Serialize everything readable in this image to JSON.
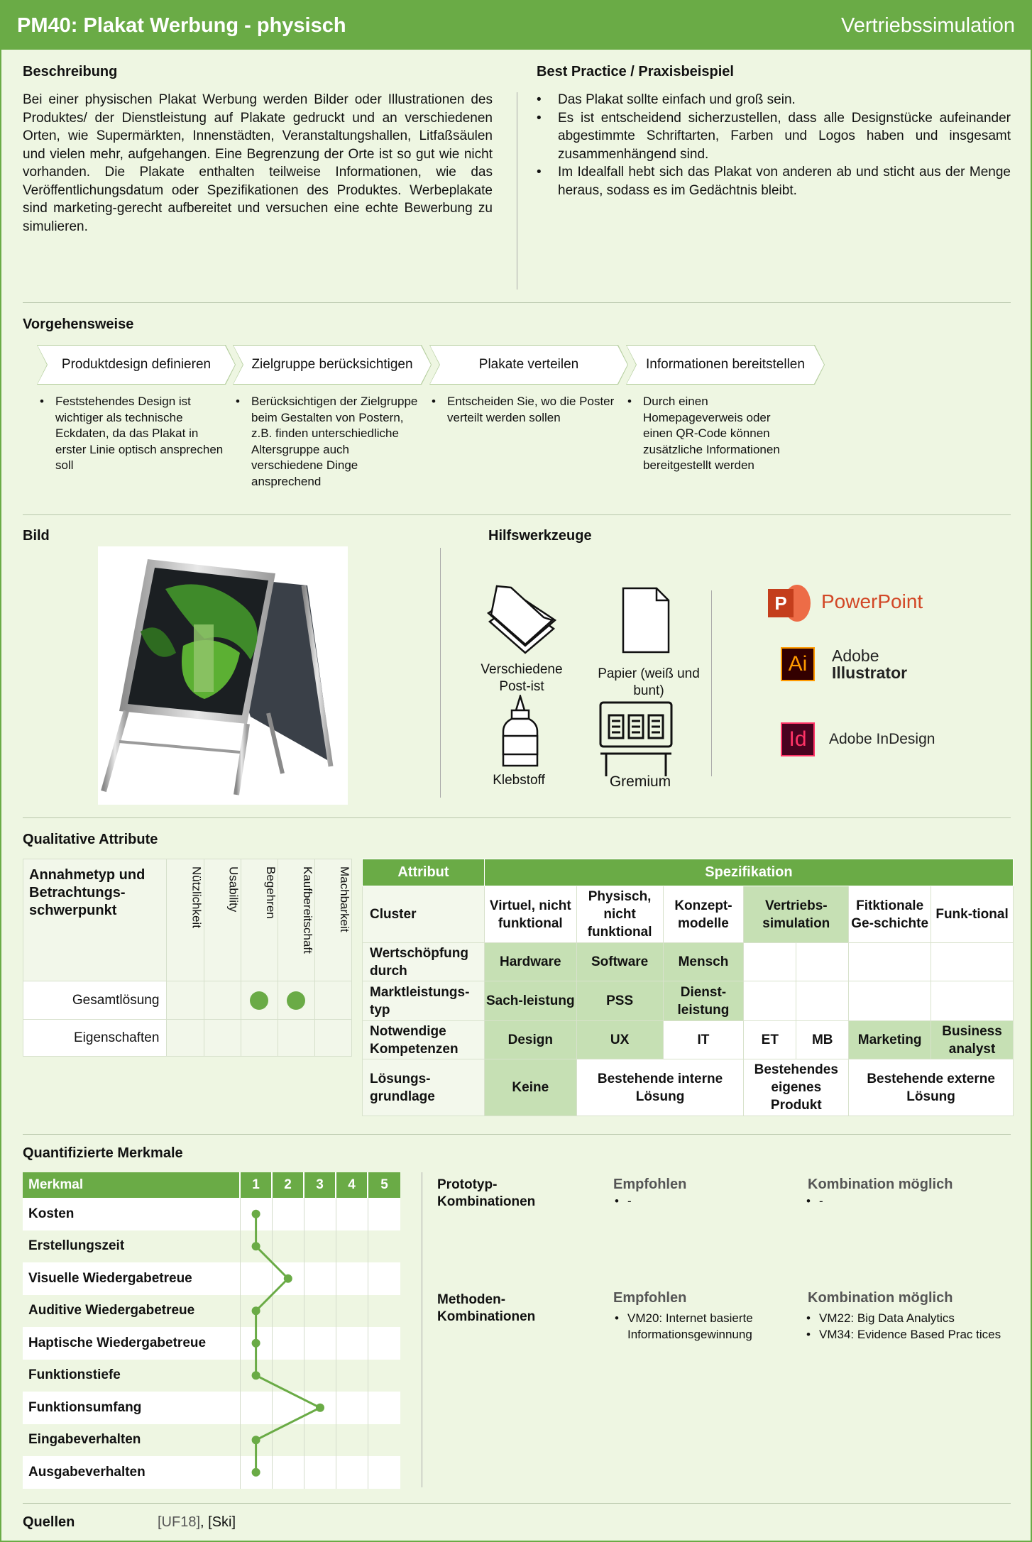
{
  "header": {
    "title": "PM40: Plakat Werbung - physisch",
    "category": "Vertriebssimulation"
  },
  "beschreibung": {
    "heading": "Beschreibung",
    "text": "Bei einer physischen Plakat Werbung werden Bilder oder Illustrationen des Produktes/ der Dienstleistung auf Plakate gedruckt und an verschiedenen Orten, wie Supermärkten, Innenstädten, Veranstaltungshallen, Litfaßsäulen und vielen mehr, aufgehangen. Eine Begrenzung der Orte ist so gut wie nicht vorhanden. Die Plakate enthalten teilweise Informationen, wie das Veröffentlichungsdatum oder Spezifikationen des Produktes. Werbeplakate sind marketing-gerecht aufbereitet und versuchen eine echte Bewerbung zu simulieren."
  },
  "best_practice": {
    "heading": "Best Practice / Praxisbeispiel",
    "items": [
      "Das Plakat sollte einfach und groß sein.",
      "Es ist entscheidend sicherzustellen, dass alle Designstücke aufeinander abgestimmte Schriftarten, Farben und Logos haben und insgesamt zusammenhängend sind.",
      "Im Idealfall hebt sich das Plakat von anderen ab und sticht aus der Menge heraus, sodass es im Gedächtnis bleibt."
    ]
  },
  "vorgehen": {
    "heading": "Vorgehensweise",
    "steps": [
      {
        "title": "Produktdesign definieren",
        "text": "Feststehendes Design ist wichtiger als technische Eckdaten, da das Plakat in erster Linie optisch ansprechen soll"
      },
      {
        "title": "Zielgruppe berücksichtigen",
        "text": "Berücksichtigen der Zielgruppe beim Gestalten von Postern, z.B. finden unterschiedliche Altersgruppe auch verschiedene Dinge ansprechend"
      },
      {
        "title": "Plakate verteilen",
        "text": "Entscheiden Sie, wo die Poster verteilt werden sollen"
      },
      {
        "title": "Informationen bereitstellen",
        "text": "Durch einen Homepageverweis oder einen QR-Code können zusätzliche Informationen bereitgestellt werden"
      }
    ]
  },
  "bild": {
    "heading": "Bild"
  },
  "hilfswerkzeuge": {
    "heading": "Hilfswerkzeuge",
    "tools": [
      "Verschiedene Post-ist",
      "Papier (weiß und bunt)",
      "Klebstoff",
      "Gremium"
    ],
    "software": {
      "ppt_abbr": "P",
      "ppt_name": "PowerPoint",
      "ai_abbr": "Ai",
      "ai_name1": "Adobe",
      "ai_name2": "Illustrator",
      "id_abbr": "Id",
      "id_name": "Adobe InDesign"
    }
  },
  "qualitative": {
    "heading": "Qualitative Attribute",
    "corner": "Annahmetyp und Betrachtungs-schwerpunkt",
    "columns": [
      "Nützlichkeit",
      "Usability",
      "Begehren",
      "Kaufbereitschaft",
      "Machbarkeit"
    ],
    "rows": [
      {
        "label": "Gesamtlösung",
        "marks": [
          false,
          false,
          true,
          true,
          false
        ]
      },
      {
        "label": "Eigenschaften",
        "marks": [
          false,
          false,
          false,
          false,
          false
        ]
      }
    ]
  },
  "spezifikation": {
    "head_attr": "Attribut",
    "head_spec": "Spezifikation",
    "cluster": {
      "label": "Cluster",
      "values": [
        "Virtuel, nicht funktional",
        "Physisch, nicht funktional",
        "Konzept-modelle",
        "Vertriebs-simulation",
        "Fitktionale Ge-schichte",
        "Funk-tional"
      ]
    },
    "wertschoepfung": {
      "label": "Wertschöpfung durch",
      "values": [
        "Hardware",
        "Software",
        "Mensch"
      ]
    },
    "marktleistung": {
      "label": "Marktleistungs-typ",
      "values": [
        "Sach-leistung",
        "PSS",
        "Dienst-leistung"
      ]
    },
    "kompetenzen": {
      "label": "Notwendige Kompetenzen",
      "values": [
        "Design",
        "UX",
        "IT",
        "ET",
        "MB",
        "Marketing",
        "Business analyst"
      ]
    },
    "loesung": {
      "label": "Lösungs-grundlage",
      "values": [
        "Keine",
        "Bestehende interne Lösung",
        "Bestehendes eigenes Produkt",
        "Bestehende externe Lösung"
      ]
    }
  },
  "quantifiziert": {
    "heading": "Quantifizierte Merkmale",
    "col_head": "Merkmal",
    "scale": [
      "1",
      "2",
      "3",
      "4",
      "5"
    ],
    "rows": [
      {
        "label": "Kosten",
        "value": 1
      },
      {
        "label": "Erstellungszeit",
        "value": 1
      },
      {
        "label": "Visuelle Wiedergabetreue",
        "value": 2
      },
      {
        "label": "Auditive Wiedergabetreue",
        "value": 1
      },
      {
        "label": "Haptische Wiedergabetreue",
        "value": 1
      },
      {
        "label": "Funktionstiefe",
        "value": 1
      },
      {
        "label": "Funktionsumfang",
        "value": 3
      },
      {
        "label": "Eingabeverhalten",
        "value": 1
      },
      {
        "label": "Ausgabeverhalten",
        "value": 1
      }
    ]
  },
  "kombinationen": {
    "empf": "Empfohlen",
    "komb": "Kombination möglich",
    "prototyp": {
      "label": "Prototyp-Kombinationen",
      "empfohlen": [
        "-"
      ],
      "moeglich": [
        "-"
      ]
    },
    "methoden": {
      "label": "Methoden-Kombinationen",
      "empfohlen": [
        "VM20: Internet basierte Informationsgewinnung"
      ],
      "moeglich": [
        "VM22: Big Data Analytics",
        "VM34: Evidence Based Prac tices"
      ]
    }
  },
  "quellen": {
    "label": "Quellen",
    "ref1": "[UF18]",
    "sep": ", ",
    "ref2": "[Ski]"
  }
}
